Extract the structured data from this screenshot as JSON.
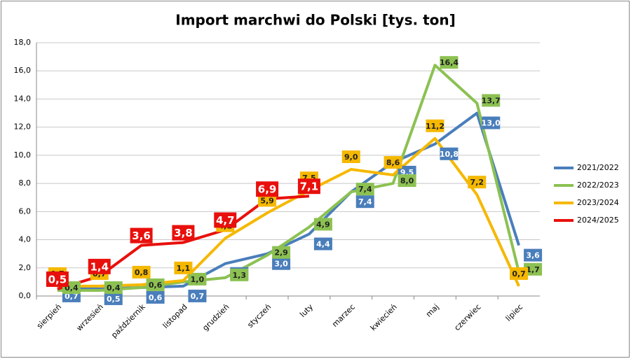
{
  "chart_data": {
    "type": "line",
    "title": "Import marchwi do Polski [tys. ton]",
    "categories": [
      "sierpień",
      "wrzesień",
      "październik",
      "listopad",
      "grudzień",
      "styczeń",
      "luty",
      "marzec",
      "kwiecień",
      "maj",
      "czerwiec",
      "lipiec"
    ],
    "series": [
      {
        "name": "2021/2022",
        "color": "#4a7ebb",
        "values": [
          0.7,
          0.5,
          0.6,
          0.7,
          2.3,
          3.0,
          4.4,
          7.4,
          9.5,
          10.8,
          13.0,
          3.6
        ],
        "value_labels": [
          "0,7",
          "0,5",
          "0,6",
          "0,7",
          "2,3",
          "3,0",
          "4,4",
          "7,4",
          "9,5",
          "10,8",
          "13,0",
          "3,6"
        ]
      },
      {
        "name": "2022/2023",
        "color": "#8cc152",
        "values": [
          0.4,
          0.4,
          0.6,
          1.0,
          1.3,
          2.9,
          4.9,
          7.4,
          8.0,
          16.4,
          13.7,
          1.7
        ],
        "value_labels": [
          "0,4",
          "0,4",
          "0,6",
          "1,0",
          "1,3",
          "2,9",
          "4,9",
          "7,4",
          "8,0",
          "16,4",
          "13,7",
          "1,7"
        ]
      },
      {
        "name": "2023/2024",
        "color": "#f5b800",
        "values": [
          0.7,
          0.7,
          0.8,
          1.1,
          4.1,
          5.9,
          7.5,
          9.0,
          8.6,
          11.2,
          7.2,
          0.7
        ],
        "value_labels": [
          "0,7",
          "0,7",
          "0,8",
          "1,1",
          "4,1",
          "5,9",
          "7,5",
          "9,0",
          "8,6",
          "11,2",
          "7,2",
          "0,7"
        ]
      },
      {
        "name": "2024/2025",
        "color": "#e8100c",
        "values": [
          0.5,
          1.4,
          3.6,
          3.8,
          4.7,
          6.9,
          7.1,
          null,
          null,
          null,
          null,
          null
        ],
        "value_labels": [
          "0,5",
          "1,4",
          "3,6",
          "3,8",
          "4,7",
          "6,9",
          "7,1",
          null,
          null,
          null,
          null,
          null
        ]
      }
    ],
    "ylim": [
      0,
      18
    ],
    "yticks": [
      {
        "value": 0,
        "label": "0,0"
      },
      {
        "value": 2,
        "label": "2,0"
      },
      {
        "value": 4,
        "label": "4,0"
      },
      {
        "value": 6,
        "label": "6,0"
      },
      {
        "value": 8,
        "label": "8,0"
      },
      {
        "value": 10,
        "label": "10,0"
      },
      {
        "value": 12,
        "label": "12,0"
      },
      {
        "value": 14,
        "label": "14,0"
      },
      {
        "value": 16,
        "label": "16,0"
      },
      {
        "value": 18,
        "label": "18,0"
      }
    ],
    "grid": true,
    "legend": "right"
  }
}
